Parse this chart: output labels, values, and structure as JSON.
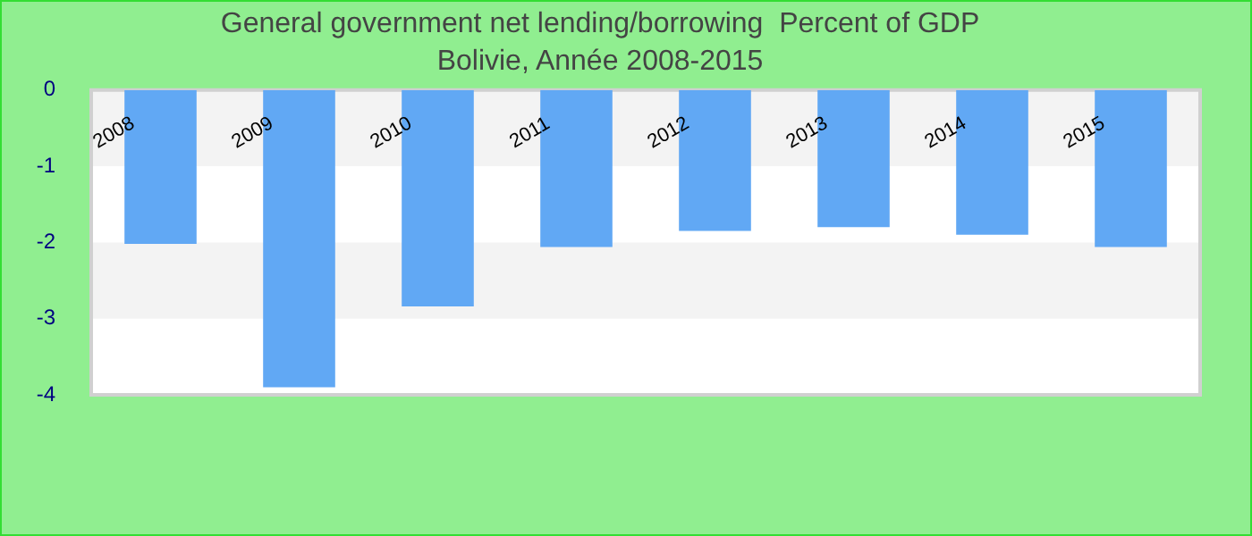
{
  "chart_data": {
    "type": "bar",
    "title": "General government net lending/borrowing  Percent of GDP",
    "subtitle": "Bolivie, Année 2008-2015",
    "categories": [
      "2008",
      "2009",
      "2010",
      "2011",
      "2012",
      "2013",
      "2014",
      "2015"
    ],
    "values": [
      -2.02,
      -3.9,
      -2.84,
      -2.06,
      -1.85,
      -1.8,
      -1.9,
      -2.06
    ],
    "color": "#61a8f4",
    "ylim": [
      -4,
      0
    ],
    "yticks": [
      -4,
      -3,
      -2,
      -1,
      0
    ],
    "bands": [
      {
        "axis": "y",
        "from": -1,
        "to": 0,
        "color": "#f3f3f3"
      },
      {
        "axis": "y",
        "from": -3,
        "to": -2,
        "color": "#f3f3f3"
      }
    ]
  }
}
